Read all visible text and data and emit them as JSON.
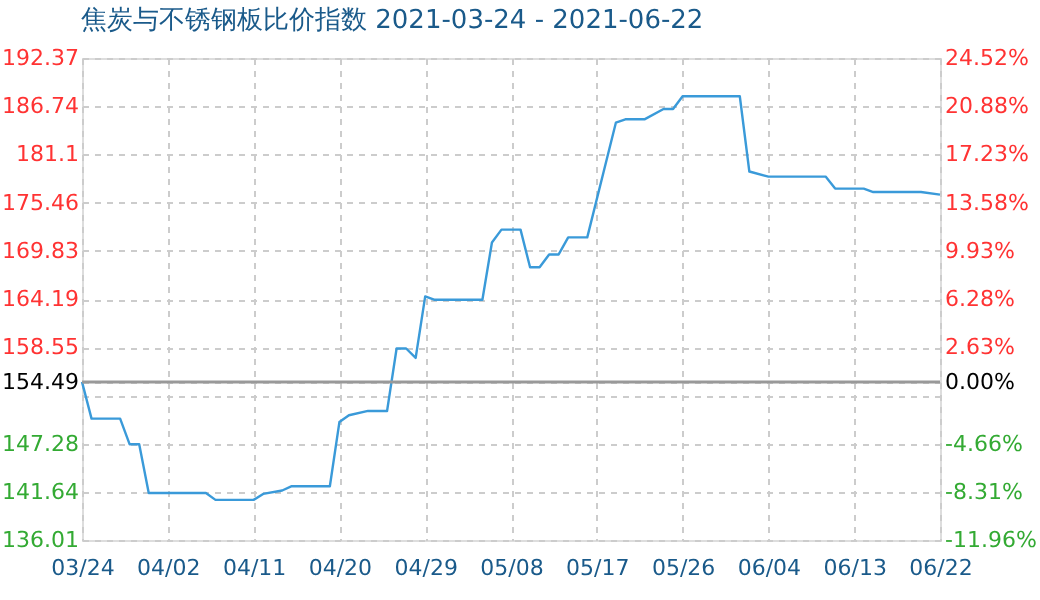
{
  "chart_data": {
    "type": "line",
    "title": "焦炭与不锈钢板比价指数 2021-03-24 - 2021-06-22",
    "x": [
      "2021-03-24",
      "2021-03-25",
      "2021-03-28",
      "2021-03-29",
      "2021-03-30",
      "2021-03-31",
      "2021-04-06",
      "2021-04-07",
      "2021-04-11",
      "2021-04-12",
      "2021-04-14",
      "2021-04-15",
      "2021-04-19",
      "2021-04-20",
      "2021-04-21",
      "2021-04-23",
      "2021-04-25",
      "2021-04-26",
      "2021-04-27",
      "2021-04-28",
      "2021-04-29",
      "2021-04-30",
      "2021-05-05",
      "2021-05-06",
      "2021-05-07",
      "2021-05-09",
      "2021-05-10",
      "2021-05-11",
      "2021-05-12",
      "2021-05-13",
      "2021-05-14",
      "2021-05-16",
      "2021-05-19",
      "2021-05-20",
      "2021-05-22",
      "2021-05-24",
      "2021-05-25",
      "2021-05-26",
      "2021-06-01",
      "2021-06-02",
      "2021-06-04",
      "2021-06-10",
      "2021-06-11",
      "2021-06-14",
      "2021-06-15",
      "2021-06-20",
      "2021-06-22"
    ],
    "series": [
      {
        "color": "#3a9ad9",
        "values": [
          154.5,
          150.2,
          150.2,
          147.2,
          147.2,
          141.5,
          141.5,
          140.7,
          140.7,
          141.4,
          141.8,
          142.3,
          142.3,
          149.8,
          150.6,
          151.1,
          151.1,
          158.4,
          158.4,
          157.3,
          164.5,
          164.1,
          164.1,
          170.8,
          172.3,
          172.3,
          167.9,
          167.9,
          169.4,
          169.4,
          171.4,
          171.4,
          184.8,
          185.2,
          185.2,
          186.4,
          186.4,
          187.9,
          187.9,
          179.1,
          178.5,
          178.5,
          177.1,
          177.1,
          176.7,
          176.7,
          176.4
        ]
      }
    ],
    "xlim": [
      "2021-03-24",
      "2021-06-22"
    ],
    "xticks": [
      {
        "value": "2021-03-24",
        "label": "03/24"
      },
      {
        "value": "2021-04-02",
        "label": "04/02"
      },
      {
        "value": "2021-04-11",
        "label": "04/11"
      },
      {
        "value": "2021-04-20",
        "label": "04/20"
      },
      {
        "value": "2021-04-29",
        "label": "04/29"
      },
      {
        "value": "2021-05-08",
        "label": "05/08"
      },
      {
        "value": "2021-05-17",
        "label": "05/17"
      },
      {
        "value": "2021-05-26",
        "label": "05/26"
      },
      {
        "value": "2021-06-04",
        "label": "06/04"
      },
      {
        "value": "2021-06-13",
        "label": "06/13"
      },
      {
        "value": "2021-06-22",
        "label": "06/22"
      }
    ],
    "ylim": [
      136.01,
      192.37
    ],
    "yticks": [
      136.01,
      141.64,
      147.28,
      {
        "value": 152.91,
        "label": null
      },
      154.49,
      158.55,
      164.19,
      169.83,
      175.46,
      181.1,
      186.74,
      192.37
    ],
    "y2lim": [
      -11.96,
      24.52
    ],
    "y2ticks": [
      {
        "value": -11.96,
        "label": "-11.96%"
      },
      {
        "value": -8.31,
        "label": "-8.31%"
      },
      {
        "value": -4.66,
        "label": "-4.66%"
      },
      {
        "value": 0,
        "label": "0.00%"
      },
      {
        "value": 2.63,
        "label": "2.63%"
      },
      {
        "value": 6.28,
        "label": "6.28%"
      },
      {
        "value": 9.93,
        "label": "9.93%"
      },
      {
        "value": 13.58,
        "label": "13.58%"
      },
      {
        "value": 17.23,
        "label": "17.23%"
      },
      {
        "value": 20.88,
        "label": "20.88%"
      },
      {
        "value": 24.52,
        "label": "24.52%"
      }
    ],
    "ref_lines": [
      {
        "axis": "y2",
        "value": 0,
        "color": "#999999",
        "line_style": "solid"
      }
    ],
    "grid": true,
    "marker": "none",
    "line_style": "solid"
  }
}
